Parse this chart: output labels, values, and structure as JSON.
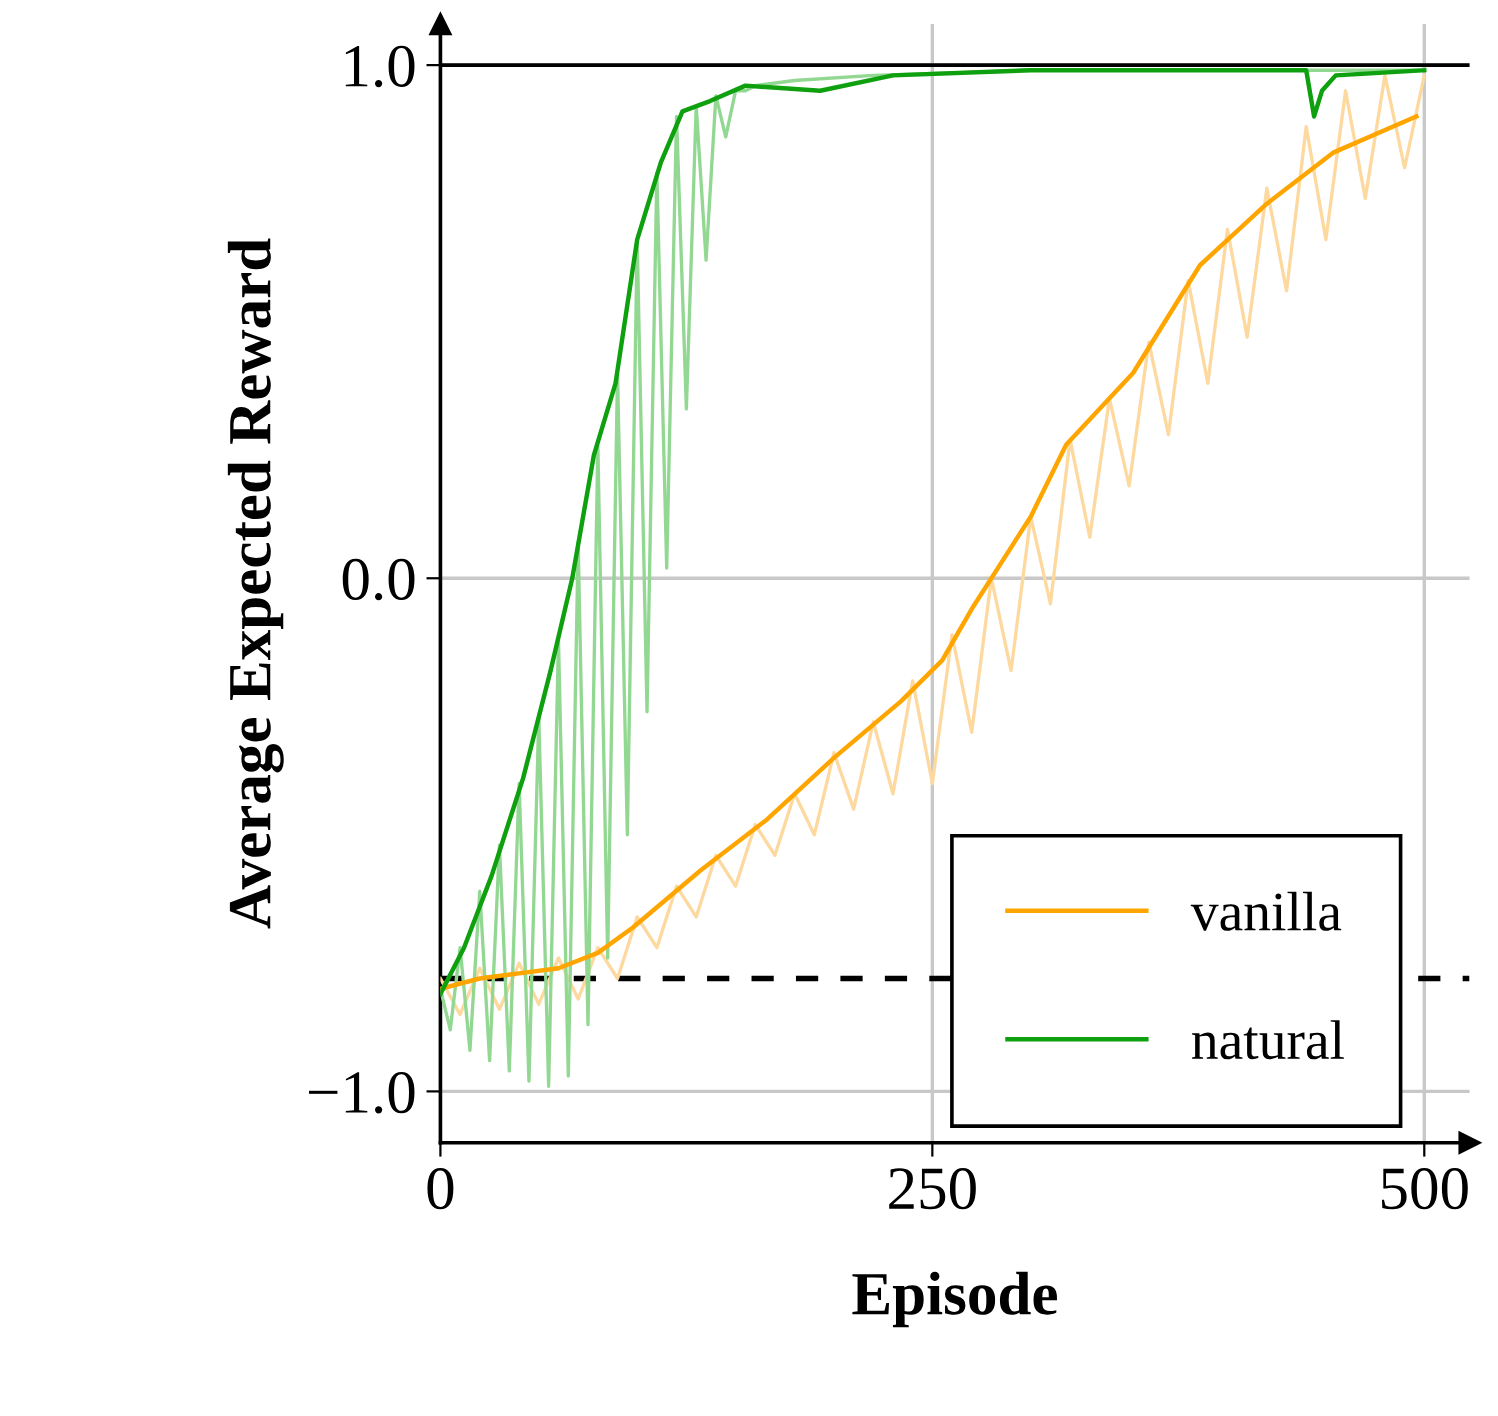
{
  "chart_data": {
    "type": "line",
    "xlabel": "Episode",
    "ylabel": "Average Expected Reward",
    "xlim": [
      0,
      523
    ],
    "ylim": [
      -1.1,
      1.08
    ],
    "xticks": [
      0,
      250,
      500
    ],
    "yticks": [
      {
        "value": -1.0,
        "label": "−1.0"
      },
      {
        "value": 0.0,
        "label": "0.0"
      },
      {
        "value": 1.0,
        "label": "1.0"
      }
    ],
    "grid": true,
    "legend": "bottom right",
    "marker": "none",
    "line_style": "solid",
    "ref_lines": [
      {
        "axis": "y",
        "value": 1.0,
        "color": "#000000",
        "line_style": "solid"
      },
      {
        "axis": "y",
        "value": -0.78,
        "color": "#000000",
        "line_style": "dashed"
      }
    ],
    "series": [
      {
        "color": "#fdd9a0",
        "x": [
          0,
          10,
          20,
          30,
          40,
          50,
          60,
          70,
          80,
          90,
          100,
          110,
          120,
          130,
          140,
          150,
          160,
          170,
          180,
          190,
          200,
          210,
          220,
          230,
          240,
          250,
          260,
          270,
          280,
          290,
          300,
          310,
          320,
          330,
          340,
          350,
          360,
          370,
          380,
          390,
          400,
          410,
          420,
          430,
          440,
          450,
          460,
          470,
          480,
          490,
          500
        ],
        "values": [
          -0.78,
          -0.85,
          -0.76,
          -0.84,
          -0.75,
          -0.83,
          -0.74,
          -0.82,
          -0.72,
          -0.78,
          -0.66,
          -0.72,
          -0.6,
          -0.66,
          -0.54,
          -0.6,
          -0.48,
          -0.54,
          -0.42,
          -0.5,
          -0.34,
          -0.45,
          -0.28,
          -0.42,
          -0.2,
          -0.4,
          -0.11,
          -0.3,
          0.0,
          -0.18,
          0.12,
          -0.05,
          0.27,
          0.08,
          0.35,
          0.18,
          0.46,
          0.28,
          0.58,
          0.38,
          0.68,
          0.47,
          0.76,
          0.56,
          0.88,
          0.66,
          0.95,
          0.74,
          0.98,
          0.8,
          0.98
        ]
      },
      {
        "color": "#92d892",
        "x": [
          0,
          5,
          10,
          15,
          20,
          25,
          30,
          35,
          40,
          45,
          50,
          55,
          60,
          65,
          70,
          75,
          80,
          85,
          90,
          95,
          100,
          105,
          110,
          115,
          120,
          125,
          130,
          135,
          140,
          145,
          150,
          155,
          160,
          180,
          220,
          300,
          400,
          500
        ],
        "values": [
          -0.8,
          -0.88,
          -0.72,
          -0.92,
          -0.61,
          -0.94,
          -0.52,
          -0.96,
          -0.4,
          -0.98,
          -0.27,
          -0.99,
          -0.12,
          -0.97,
          0.07,
          -0.87,
          0.26,
          -0.74,
          0.4,
          -0.5,
          0.66,
          -0.26,
          0.79,
          0.02,
          0.9,
          0.33,
          0.92,
          0.62,
          0.94,
          0.86,
          0.95,
          0.95,
          0.96,
          0.97,
          0.98,
          0.99,
          0.99,
          0.99
        ]
      },
      {
        "name": "vanilla",
        "color": "#ffa500",
        "x": [
          0,
          20,
          40,
          60,
          80,
          98,
          132,
          166,
          200,
          234,
          255,
          270,
          285,
          300,
          318,
          352,
          386,
          420,
          454,
          496
        ],
        "values": [
          -0.8,
          -0.78,
          -0.77,
          -0.76,
          -0.73,
          -0.68,
          -0.57,
          -0.47,
          -0.35,
          -0.24,
          -0.16,
          -0.06,
          0.03,
          0.12,
          0.26,
          0.4,
          0.61,
          0.73,
          0.83,
          0.9
        ]
      },
      {
        "name": "natural",
        "color": "#0fa00f",
        "x": [
          0,
          12,
          26,
          42,
          56,
          67,
          78,
          89,
          100,
          112,
          123,
          137,
          155,
          193,
          230,
          300,
          400,
          440,
          444,
          448,
          455,
          500
        ],
        "values": [
          -0.81,
          -0.72,
          -0.58,
          -0.39,
          -0.18,
          0.0,
          0.24,
          0.38,
          0.66,
          0.81,
          0.91,
          0.93,
          0.96,
          0.95,
          0.98,
          0.99,
          0.99,
          0.99,
          0.9,
          0.95,
          0.98,
          0.99
        ]
      }
    ]
  }
}
